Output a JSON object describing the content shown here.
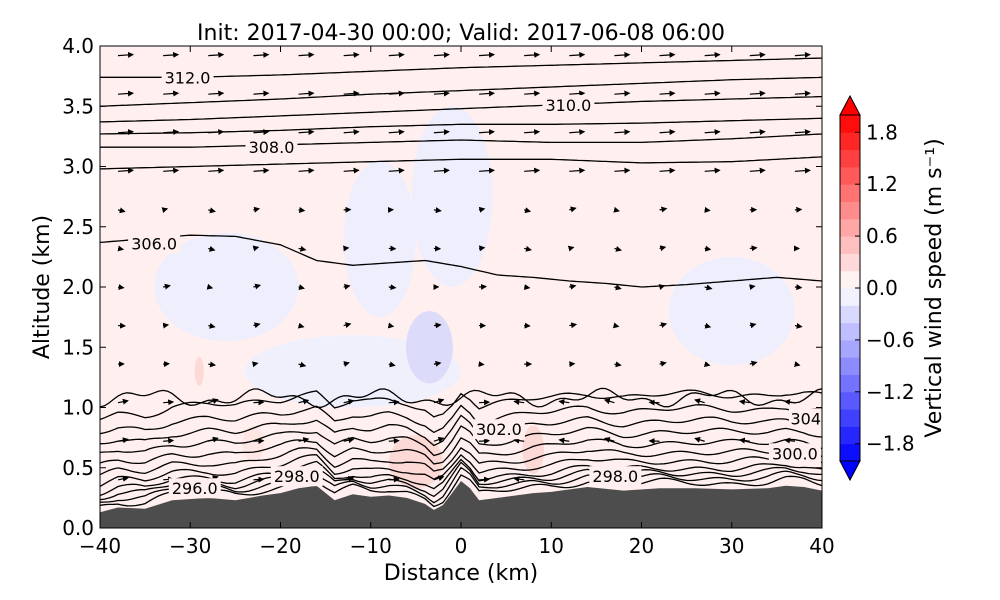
{
  "chart_data": {
    "type": "contour",
    "title": "Init: 2017-04-30 00:00; Valid: 2017-06-08 06:00",
    "xlabel": "Distance (km)",
    "ylabel": "Altitude (km)",
    "xlim": [
      -40,
      40
    ],
    "ylim": [
      0.0,
      4.0
    ],
    "x_ticks": [
      "−40",
      "−30",
      "−20",
      "−10",
      "0",
      "10",
      "20",
      "30",
      "40"
    ],
    "x_tick_values": [
      -40,
      -30,
      -20,
      -10,
      0,
      10,
      20,
      30,
      40
    ],
    "y_ticks": [
      "0.0",
      "0.5",
      "1.0",
      "1.5",
      "2.0",
      "2.5",
      "3.0",
      "3.5",
      "4.0"
    ],
    "y_tick_values": [
      0.0,
      0.5,
      1.0,
      1.5,
      2.0,
      2.5,
      3.0,
      3.5,
      4.0
    ],
    "grid": false,
    "colorbar": {
      "label": "Vertical wind speed (m s⁻¹)",
      "range": [
        -2.0,
        2.0
      ],
      "ticks": [
        "1.8",
        "1.2",
        "0.6",
        "0.0",
        "−0.6",
        "−1.2",
        "−1.8"
      ],
      "tick_values": [
        1.8,
        1.2,
        0.6,
        0.0,
        -0.6,
        -1.2,
        -1.8
      ],
      "levels": 20,
      "colormap": "bwr",
      "extend": "both",
      "color_low": "#0000ff",
      "color_mid": "#ffffff",
      "color_high": "#ff0000"
    },
    "terrain": {
      "color": "#4d4d4d",
      "x": [
        -40,
        -38,
        -35,
        -32,
        -28,
        -25,
        -22,
        -20,
        -18,
        -16,
        -14,
        -12,
        -10,
        -8,
        -6,
        -4,
        -3,
        -2,
        -1,
        0,
        1,
        2,
        3,
        5,
        8,
        10,
        14,
        18,
        22,
        26,
        30,
        34,
        36,
        38,
        40
      ],
      "height": [
        0.13,
        0.17,
        0.16,
        0.23,
        0.25,
        0.23,
        0.27,
        0.29,
        0.33,
        0.35,
        0.23,
        0.28,
        0.26,
        0.27,
        0.25,
        0.2,
        0.15,
        0.19,
        0.29,
        0.39,
        0.33,
        0.23,
        0.24,
        0.26,
        0.29,
        0.3,
        0.34,
        0.31,
        0.33,
        0.33,
        0.32,
        0.33,
        0.35,
        0.34,
        0.31
      ]
    },
    "theta_contours": {
      "labels": [
        {
          "text": "296.0",
          "x": -29.5,
          "y": 0.33
        },
        {
          "text": "298.0",
          "x": -18.2,
          "y": 0.43
        },
        {
          "text": "298.0",
          "x": 17.1,
          "y": 0.43
        },
        {
          "text": "300.0",
          "x": 37.0,
          "y": 0.62
        },
        {
          "text": "302.0",
          "x": 4.2,
          "y": 0.82
        },
        {
          "text": "304",
          "x": 38.2,
          "y": 0.91
        },
        {
          "text": "306.0",
          "x": -34.0,
          "y": 2.36
        },
        {
          "text": "308.0",
          "x": -21.0,
          "y": 3.16
        },
        {
          "text": "310.0",
          "x": 11.9,
          "y": 3.51
        },
        {
          "text": "312.0",
          "x": -30.3,
          "y": 3.74
        }
      ],
      "low_levels": [
        0.05,
        0.09,
        0.13,
        0.17,
        0.23,
        0.3,
        0.38,
        0.47,
        0.56,
        0.66,
        0.78
      ],
      "upper_lines": [
        {
          "x": [
            -40,
            -35,
            -30,
            -25,
            -20,
            -16,
            -12,
            -8,
            -4,
            0,
            4,
            8,
            12,
            16,
            20,
            25,
            30,
            35,
            40
          ],
          "y": [
            2.37,
            2.4,
            2.43,
            2.42,
            2.35,
            2.22,
            2.18,
            2.2,
            2.22,
            2.17,
            2.1,
            2.08,
            2.05,
            2.03,
            2.0,
            2.02,
            2.05,
            2.08,
            2.05
          ]
        },
        {
          "x": [
            -40,
            -30,
            -20,
            -10,
            0,
            10,
            20,
            30,
            40
          ],
          "y": [
            2.98,
            3.0,
            3.02,
            3.04,
            3.06,
            3.06,
            3.03,
            3.04,
            3.08
          ]
        },
        {
          "x": [
            -40,
            -30,
            -20,
            -10,
            0,
            10,
            20,
            30,
            40
          ],
          "y": [
            3.16,
            3.16,
            3.18,
            3.2,
            3.22,
            3.2,
            3.2,
            3.23,
            3.27
          ]
        },
        {
          "x": [
            -40,
            -30,
            -20,
            -10,
            0,
            10,
            20,
            30,
            40
          ],
          "y": [
            3.27,
            3.28,
            3.3,
            3.33,
            3.35,
            3.35,
            3.36,
            3.38,
            3.4
          ]
        },
        {
          "x": [
            -40,
            -30,
            -20,
            -10,
            0,
            10,
            20,
            30,
            40
          ],
          "y": [
            3.37,
            3.39,
            3.42,
            3.45,
            3.48,
            3.51,
            3.54,
            3.56,
            3.58
          ]
        },
        {
          "x": [
            -40,
            -30,
            -20,
            -10,
            0,
            10,
            20,
            30,
            40
          ],
          "y": [
            3.5,
            3.53,
            3.56,
            3.6,
            3.63,
            3.66,
            3.69,
            3.72,
            3.74
          ]
        },
        {
          "x": [
            -40,
            -30,
            -20,
            -10,
            0,
            10,
            20,
            30,
            40
          ],
          "y": [
            3.74,
            3.74,
            3.76,
            3.79,
            3.82,
            3.84,
            3.86,
            3.88,
            3.9
          ]
        }
      ]
    }
  }
}
